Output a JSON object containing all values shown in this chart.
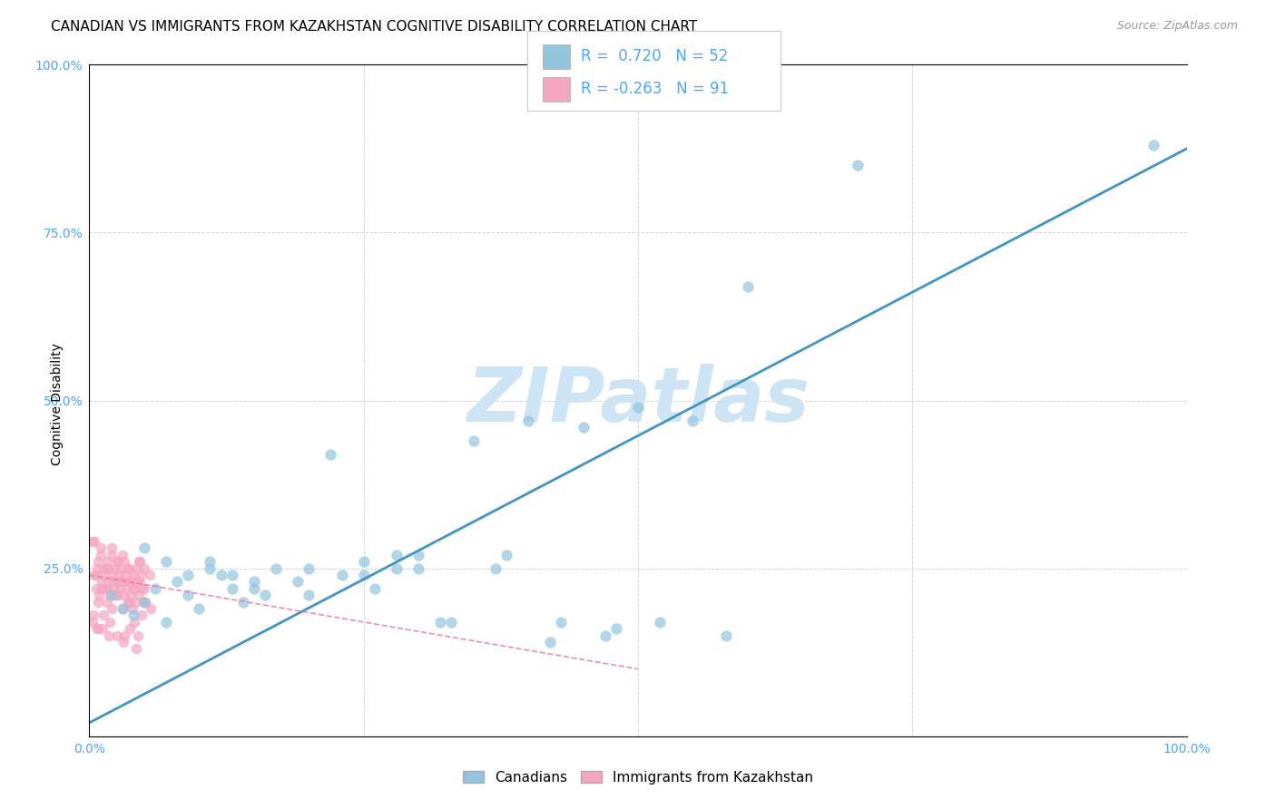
{
  "title": "CANADIAN VS IMMIGRANTS FROM KAZAKHSTAN COGNITIVE DISABILITY CORRELATION CHART",
  "source": "Source: ZipAtlas.com",
  "xlabel": "",
  "ylabel": "Cognitive Disability",
  "xlim": [
    0.0,
    1.0
  ],
  "ylim": [
    0.0,
    1.0
  ],
  "xtick_labels": [
    "0.0%",
    "",
    "",
    "",
    "100.0%"
  ],
  "xtick_positions": [
    0.0,
    0.25,
    0.5,
    0.75,
    1.0
  ],
  "ytick_labels": [
    "25.0%",
    "50.0%",
    "75.0%",
    "100.0%"
  ],
  "ytick_positions": [
    0.25,
    0.5,
    0.75,
    1.0
  ],
  "canadians_color": "#92c5de",
  "immigrants_color": "#f4a6c0",
  "regression_canadian_color": "#4393c3",
  "regression_immigrant_color": "#e87aaa",
  "regression_can_x0": 0.0,
  "regression_can_y0": 0.02,
  "regression_can_x1": 1.0,
  "regression_can_y1": 0.875,
  "regression_imm_x0": 0.0,
  "regression_imm_y0": 0.24,
  "regression_imm_x1": 0.5,
  "regression_imm_y1": 0.1,
  "legend_R_canadian": "R =  0.720",
  "legend_N_canadian": "N = 52",
  "legend_R_immigrant": "R = -0.263",
  "legend_N_immigrant": "N = 91",
  "background_color": "#ffffff",
  "grid_color": "#d0d0d0",
  "watermark_text": "ZIPatlas",
  "watermark_color": "#cce4f4",
  "title_fontsize": 11,
  "axis_label_fontsize": 10,
  "tick_fontsize": 10,
  "tick_color": "#4da6ff",
  "legend_fontsize": 11,
  "canadians_scatter": [
    [
      0.02,
      0.21
    ],
    [
      0.03,
      0.19
    ],
    [
      0.04,
      0.18
    ],
    [
      0.05,
      0.2
    ],
    [
      0.06,
      0.22
    ],
    [
      0.07,
      0.17
    ],
    [
      0.08,
      0.23
    ],
    [
      0.09,
      0.21
    ],
    [
      0.1,
      0.19
    ],
    [
      0.11,
      0.25
    ],
    [
      0.12,
      0.24
    ],
    [
      0.13,
      0.22
    ],
    [
      0.14,
      0.2
    ],
    [
      0.15,
      0.23
    ],
    [
      0.16,
      0.21
    ],
    [
      0.05,
      0.28
    ],
    [
      0.07,
      0.26
    ],
    [
      0.09,
      0.24
    ],
    [
      0.11,
      0.26
    ],
    [
      0.13,
      0.24
    ],
    [
      0.15,
      0.22
    ],
    [
      0.17,
      0.25
    ],
    [
      0.19,
      0.23
    ],
    [
      0.2,
      0.21
    ],
    [
      0.22,
      0.42
    ],
    [
      0.25,
      0.24
    ],
    [
      0.26,
      0.22
    ],
    [
      0.28,
      0.25
    ],
    [
      0.3,
      0.27
    ],
    [
      0.2,
      0.25
    ],
    [
      0.23,
      0.24
    ],
    [
      0.25,
      0.26
    ],
    [
      0.28,
      0.27
    ],
    [
      0.3,
      0.25
    ],
    [
      0.32,
      0.17
    ],
    [
      0.33,
      0.17
    ],
    [
      0.35,
      0.44
    ],
    [
      0.37,
      0.25
    ],
    [
      0.38,
      0.27
    ],
    [
      0.4,
      0.47
    ],
    [
      0.42,
      0.14
    ],
    [
      0.43,
      0.17
    ],
    [
      0.45,
      0.46
    ],
    [
      0.47,
      0.15
    ],
    [
      0.48,
      0.16
    ],
    [
      0.5,
      0.49
    ],
    [
      0.52,
      0.17
    ],
    [
      0.55,
      0.47
    ],
    [
      0.58,
      0.15
    ],
    [
      0.6,
      0.67
    ],
    [
      0.7,
      0.85
    ],
    [
      0.97,
      0.88
    ]
  ],
  "immigrants_scatter": [
    [
      0.003,
      0.29
    ],
    [
      0.005,
      0.24
    ],
    [
      0.006,
      0.22
    ],
    [
      0.007,
      0.25
    ],
    [
      0.008,
      0.26
    ],
    [
      0.009,
      0.21
    ],
    [
      0.01,
      0.28
    ],
    [
      0.011,
      0.23
    ],
    [
      0.012,
      0.22
    ],
    [
      0.013,
      0.25
    ],
    [
      0.014,
      0.24
    ],
    [
      0.015,
      0.22
    ],
    [
      0.016,
      0.26
    ],
    [
      0.017,
      0.23
    ],
    [
      0.018,
      0.25
    ],
    [
      0.019,
      0.21
    ],
    [
      0.02,
      0.27
    ],
    [
      0.021,
      0.24
    ],
    [
      0.022,
      0.22
    ],
    [
      0.023,
      0.25
    ],
    [
      0.024,
      0.23
    ],
    [
      0.025,
      0.21
    ],
    [
      0.026,
      0.26
    ],
    [
      0.027,
      0.24
    ],
    [
      0.028,
      0.22
    ],
    [
      0.029,
      0.25
    ],
    [
      0.03,
      0.23
    ],
    [
      0.031,
      0.21
    ],
    [
      0.032,
      0.26
    ],
    [
      0.033,
      0.24
    ],
    [
      0.034,
      0.22
    ],
    [
      0.035,
      0.2
    ],
    [
      0.036,
      0.25
    ],
    [
      0.037,
      0.23
    ],
    [
      0.038,
      0.21
    ],
    [
      0.039,
      0.19
    ],
    [
      0.04,
      0.24
    ],
    [
      0.041,
      0.22
    ],
    [
      0.042,
      0.2
    ],
    [
      0.043,
      0.25
    ],
    [
      0.044,
      0.23
    ],
    [
      0.045,
      0.21
    ],
    [
      0.046,
      0.26
    ],
    [
      0.047,
      0.24
    ],
    [
      0.048,
      0.22
    ],
    [
      0.049,
      0.2
    ],
    [
      0.05,
      0.25
    ],
    [
      0.004,
      0.18
    ],
    [
      0.008,
      0.2
    ],
    [
      0.012,
      0.16
    ],
    [
      0.016,
      0.22
    ],
    [
      0.02,
      0.19
    ],
    [
      0.024,
      0.21
    ],
    [
      0.028,
      0.23
    ],
    [
      0.032,
      0.15
    ],
    [
      0.036,
      0.2
    ],
    [
      0.04,
      0.22
    ],
    [
      0.044,
      0.15
    ],
    [
      0.048,
      0.18
    ],
    [
      0.005,
      0.29
    ],
    [
      0.01,
      0.27
    ],
    [
      0.015,
      0.25
    ],
    [
      0.02,
      0.28
    ],
    [
      0.025,
      0.26
    ],
    [
      0.03,
      0.27
    ],
    [
      0.035,
      0.25
    ],
    [
      0.04,
      0.23
    ],
    [
      0.045,
      0.26
    ],
    [
      0.05,
      0.22
    ],
    [
      0.055,
      0.24
    ],
    [
      0.006,
      0.24
    ],
    [
      0.011,
      0.22
    ],
    [
      0.016,
      0.2
    ],
    [
      0.021,
      0.23
    ],
    [
      0.026,
      0.21
    ],
    [
      0.031,
      0.19
    ],
    [
      0.036,
      0.23
    ],
    [
      0.041,
      0.17
    ],
    [
      0.046,
      0.23
    ],
    [
      0.051,
      0.2
    ],
    [
      0.056,
      0.19
    ],
    [
      0.003,
      0.17
    ],
    [
      0.007,
      0.16
    ],
    [
      0.013,
      0.18
    ],
    [
      0.019,
      0.17
    ],
    [
      0.025,
      0.15
    ],
    [
      0.031,
      0.14
    ],
    [
      0.037,
      0.16
    ],
    [
      0.043,
      0.13
    ],
    [
      0.008,
      0.16
    ],
    [
      0.018,
      0.15
    ]
  ]
}
